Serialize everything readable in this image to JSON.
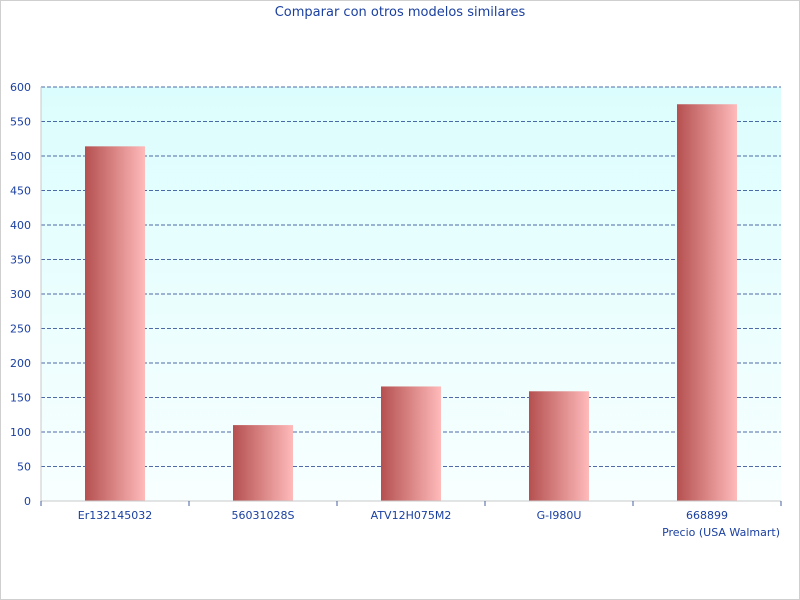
{
  "colors": {
    "plot_bg_top": "#dcfdfd",
    "plot_bg_bottom": "#f8ffff",
    "grid": "#1a3a8a",
    "text": "#1a3fa0",
    "bar_dark": "#b55050",
    "bar_light": "#ffbaba"
  },
  "chart_data": {
    "type": "bar",
    "title": "Comparar con otros modelos similares",
    "xlabel": "Precio (USA Walmart)",
    "ylabel": "",
    "categories": [
      "Er132145032",
      "56031028S",
      "ATV12H075M2",
      "G-I980U",
      "668899"
    ],
    "values": [
      514,
      110,
      166,
      159,
      575
    ],
    "ylim": [
      0,
      600
    ],
    "yticks": [
      0,
      50,
      100,
      150,
      200,
      250,
      300,
      350,
      400,
      450,
      500,
      550,
      600
    ],
    "grid": true,
    "legend": "none"
  }
}
